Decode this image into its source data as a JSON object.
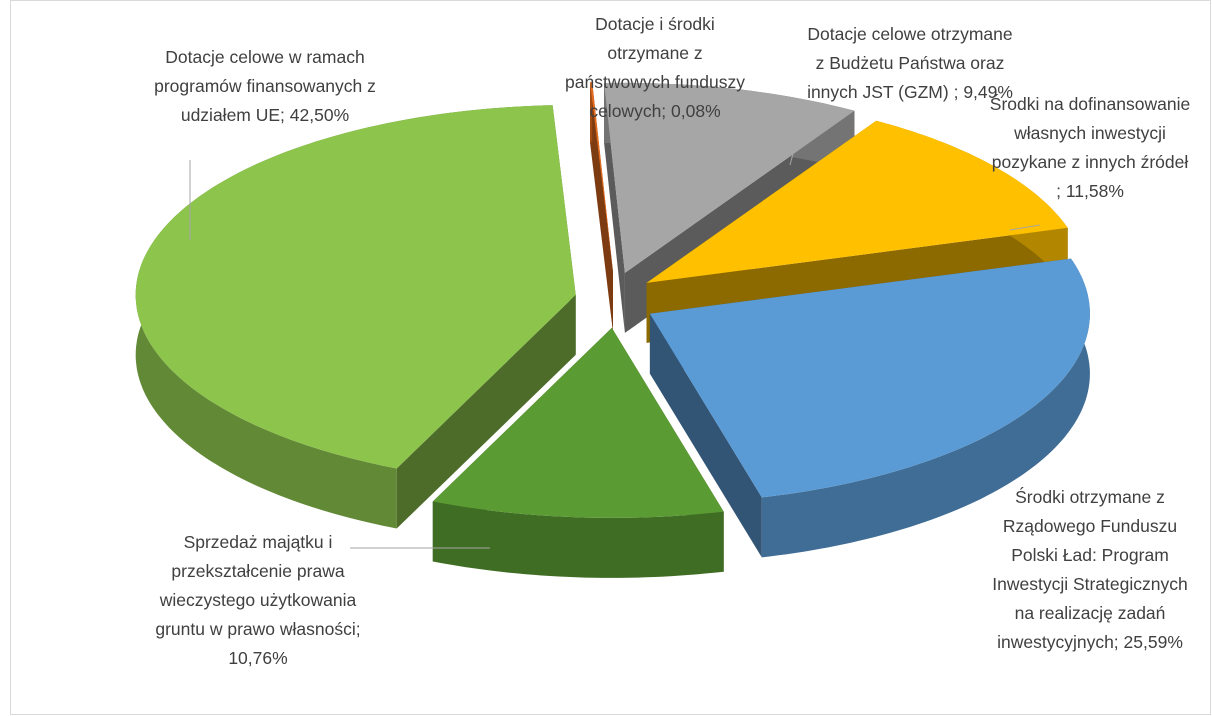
{
  "chart_data": {
    "type": "pie",
    "categories": [
      "Dotacje i środki otrzymane z państwowych funduszy celowych;",
      "Dotacje celowe otrzymane z Budżetu Państwa oraz innych JST (GZM) ;",
      "Środki na dofinansowanie własnych inwestycji pozykane z innych źródeł ;",
      "Środki otrzymane z Rządowego Funduszu Polski Ład: Program Inwestycji Strategicznych na realizację zadań inwestycyjnych;",
      "Sprzedaż majątku i przekształcenie prawa wieczystego użytkowania gruntu w prawo własności;",
      "Dotacje celowe w ramach programów finansowanych z udziałem UE;"
    ],
    "values": [
      0.08,
      9.49,
      11.58,
      25.59,
      10.76,
      42.5
    ],
    "value_labels": [
      "0,08%",
      "9,49%",
      "11,58%",
      "25,59%",
      "10,76%",
      "42,50%"
    ],
    "colors": [
      "#e46c1e",
      "#a6a6a6",
      "#ffc000",
      "#5b9bd5",
      "#5b9b33",
      "#8cc44c"
    ]
  }
}
